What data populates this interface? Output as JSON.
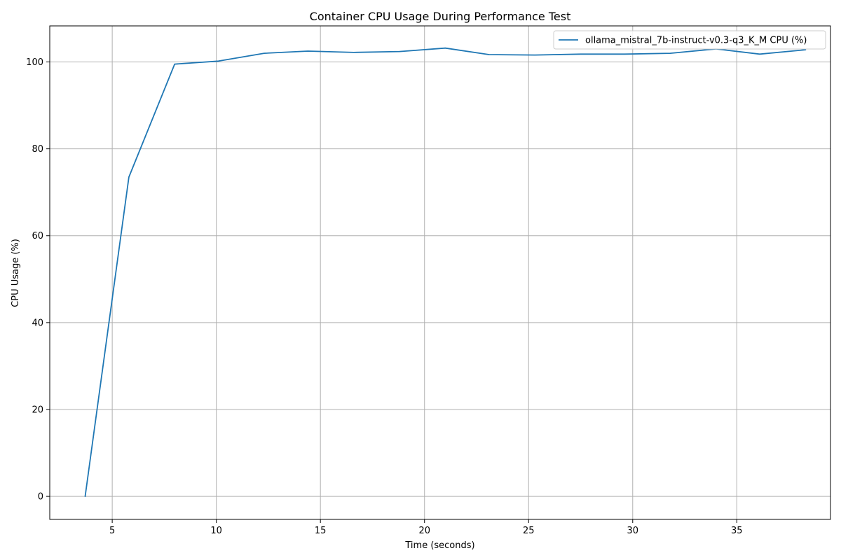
{
  "chart_data": {
    "type": "line",
    "title": "Container CPU Usage During Performance Test",
    "xlabel": "Time (seconds)",
    "ylabel": "CPU Usage (%)",
    "xlim": [
      2.0,
      39.5
    ],
    "ylim": [
      -5.3,
      108.3
    ],
    "xticks": [
      5,
      10,
      15,
      20,
      25,
      30,
      35
    ],
    "yticks": [
      0,
      20,
      40,
      60,
      80,
      100
    ],
    "grid": true,
    "legend_position": "top-right",
    "series": [
      {
        "name": "ollama_mistral_7b-instruct-v0.3-q3_K_M CPU (%)",
        "color": "#1f77b4",
        "x": [
          3.7,
          5.8,
          8.0,
          10.1,
          12.3,
          14.4,
          16.6,
          18.8,
          21.0,
          23.1,
          25.3,
          27.5,
          29.6,
          31.8,
          34.0,
          36.1,
          38.3
        ],
        "y": [
          0.0,
          73.5,
          99.5,
          100.2,
          102.0,
          102.5,
          102.2,
          102.4,
          103.2,
          101.7,
          101.6,
          101.8,
          101.8,
          102.0,
          103.0,
          101.8,
          102.8
        ]
      }
    ]
  }
}
